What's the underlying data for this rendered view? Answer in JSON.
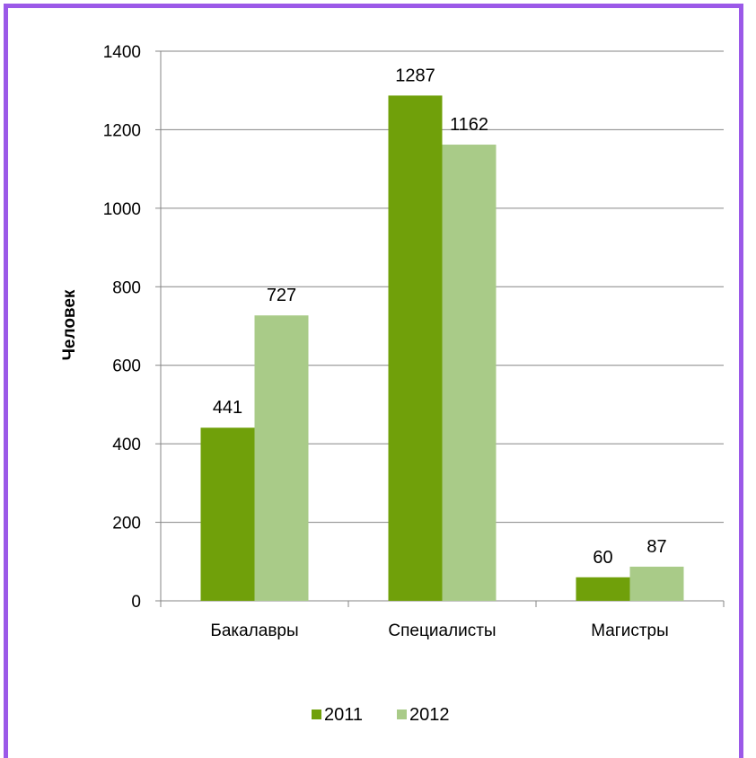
{
  "colors": {
    "frame": "#9b59e8",
    "grid": "#868686",
    "series_2011": "#70a00a",
    "series_2012": "#a9cb88"
  },
  "chart_data": {
    "type": "bar",
    "ylabel": "Человек",
    "xlabel": "",
    "ylim": [
      0,
      1400
    ],
    "yticks": [
      "0",
      "200",
      "400",
      "600",
      "800",
      "1000",
      "1200",
      "1400"
    ],
    "categories": [
      "Бакалавры",
      "Специалисты",
      "Магистры"
    ],
    "series": [
      {
        "name": "2011",
        "values": [
          441,
          1287,
          60
        ]
      },
      {
        "name": "2012",
        "values": [
          727,
          1162,
          87
        ]
      }
    ],
    "grid": true,
    "legend": "bottom"
  }
}
